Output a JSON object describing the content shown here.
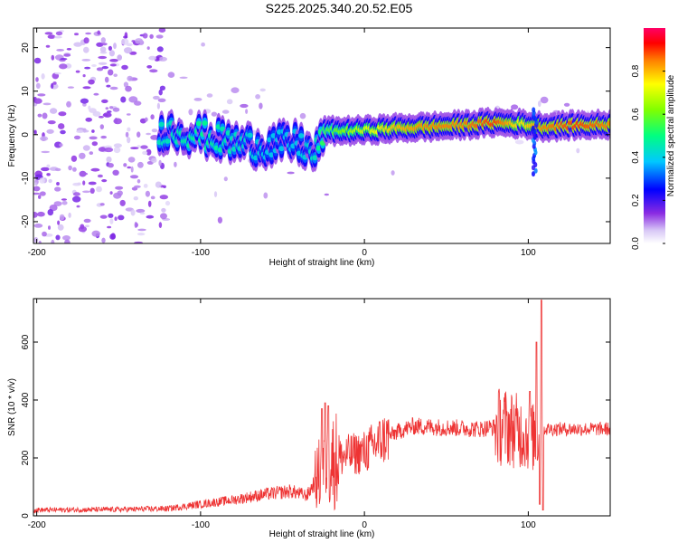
{
  "title": "S225.2025.340.20.52.E05",
  "chart_data": [
    {
      "type": "heatmap",
      "xlabel": "Height of straight line (km)",
      "ylabel": "Frequency (Hz)",
      "xlim": [
        -202,
        150
      ],
      "ylim": [
        -25,
        24.5
      ],
      "xticks": [
        -200,
        -100,
        0,
        100
      ],
      "yticks": [
        -20,
        -10,
        0,
        10,
        20
      ],
      "colorbar": {
        "label": "Normalized spectral amplitude",
        "range": [
          0.0,
          1.0
        ],
        "ticks": [
          0.0,
          0.2,
          0.4,
          0.6,
          0.8
        ],
        "tick_labels": [
          "0.0",
          "0.2",
          "0.4",
          "0.6",
          "0.8"
        ],
        "colors": [
          "#ffffff",
          "#6a00d8",
          "#0000ff",
          "#00c8ff",
          "#00ff80",
          "#80ff00",
          "#ffff00",
          "#ff8000",
          "#ff0000",
          "#ff0066"
        ]
      },
      "ridge": [
        {
          "x": -120,
          "f": 1.0,
          "a": 0.45
        },
        {
          "x": -100,
          "f": 0.0,
          "a": 0.5
        },
        {
          "x": -80,
          "f": -2.0,
          "a": 0.45
        },
        {
          "x": -60,
          "f": -2.5,
          "a": 0.4
        },
        {
          "x": -40,
          "f": -2.0,
          "a": 0.4
        },
        {
          "x": -30,
          "f": -5.0,
          "a": 0.45
        },
        {
          "x": -25,
          "f": 0.8,
          "a": 0.55
        },
        {
          "x": 0,
          "f": 1.0,
          "a": 0.7
        },
        {
          "x": 20,
          "f": 1.5,
          "a": 0.8
        },
        {
          "x": 40,
          "f": 1.8,
          "a": 0.85
        },
        {
          "x": 60,
          "f": 2.2,
          "a": 0.85
        },
        {
          "x": 80,
          "f": 2.8,
          "a": 0.9
        },
        {
          "x": 95,
          "f": 2.5,
          "a": 0.75
        },
        {
          "x": 110,
          "f": 1.8,
          "a": 0.85
        },
        {
          "x": 130,
          "f": 2.2,
          "a": 0.9
        },
        {
          "x": 150,
          "f": 2.3,
          "a": 0.85
        }
      ]
    },
    {
      "type": "line",
      "xlabel": "Height of straight line (km)",
      "ylabel": "SNR (10 * v/v)",
      "xlim": [
        -202,
        150
      ],
      "ylim": [
        0,
        750
      ],
      "xticks": [
        -200,
        -100,
        0,
        100
      ],
      "yticks": [
        0,
        200,
        400,
        600
      ],
      "color": "#ee3333",
      "trend": [
        {
          "x": -202,
          "y": 20
        },
        {
          "x": -150,
          "y": 22
        },
        {
          "x": -120,
          "y": 25
        },
        {
          "x": -100,
          "y": 40
        },
        {
          "x": -80,
          "y": 55
        },
        {
          "x": -60,
          "y": 75
        },
        {
          "x": -45,
          "y": 85
        },
        {
          "x": -35,
          "y": 70
        },
        {
          "x": -28,
          "y": 140
        },
        {
          "x": -20,
          "y": 190
        },
        {
          "x": -10,
          "y": 210
        },
        {
          "x": 0,
          "y": 220
        },
        {
          "x": 10,
          "y": 260
        },
        {
          "x": 20,
          "y": 290
        },
        {
          "x": 30,
          "y": 310
        },
        {
          "x": 50,
          "y": 305
        },
        {
          "x": 70,
          "y": 300
        },
        {
          "x": 85,
          "y": 310
        },
        {
          "x": 95,
          "y": 290
        },
        {
          "x": 103,
          "y": 270
        },
        {
          "x": 110,
          "y": 300
        },
        {
          "x": 130,
          "y": 300
        },
        {
          "x": 150,
          "y": 300
        }
      ],
      "spikes": [
        {
          "x": -26,
          "y": 370
        },
        {
          "x": -24,
          "y": 390
        },
        {
          "x": -22,
          "y": 380
        },
        {
          "x": 101,
          "y": 430
        },
        {
          "x": 105,
          "y": 600
        },
        {
          "x": 107,
          "y": 40
        },
        {
          "x": 108,
          "y": 745
        },
        {
          "x": 109,
          "y": 20
        }
      ]
    }
  ]
}
